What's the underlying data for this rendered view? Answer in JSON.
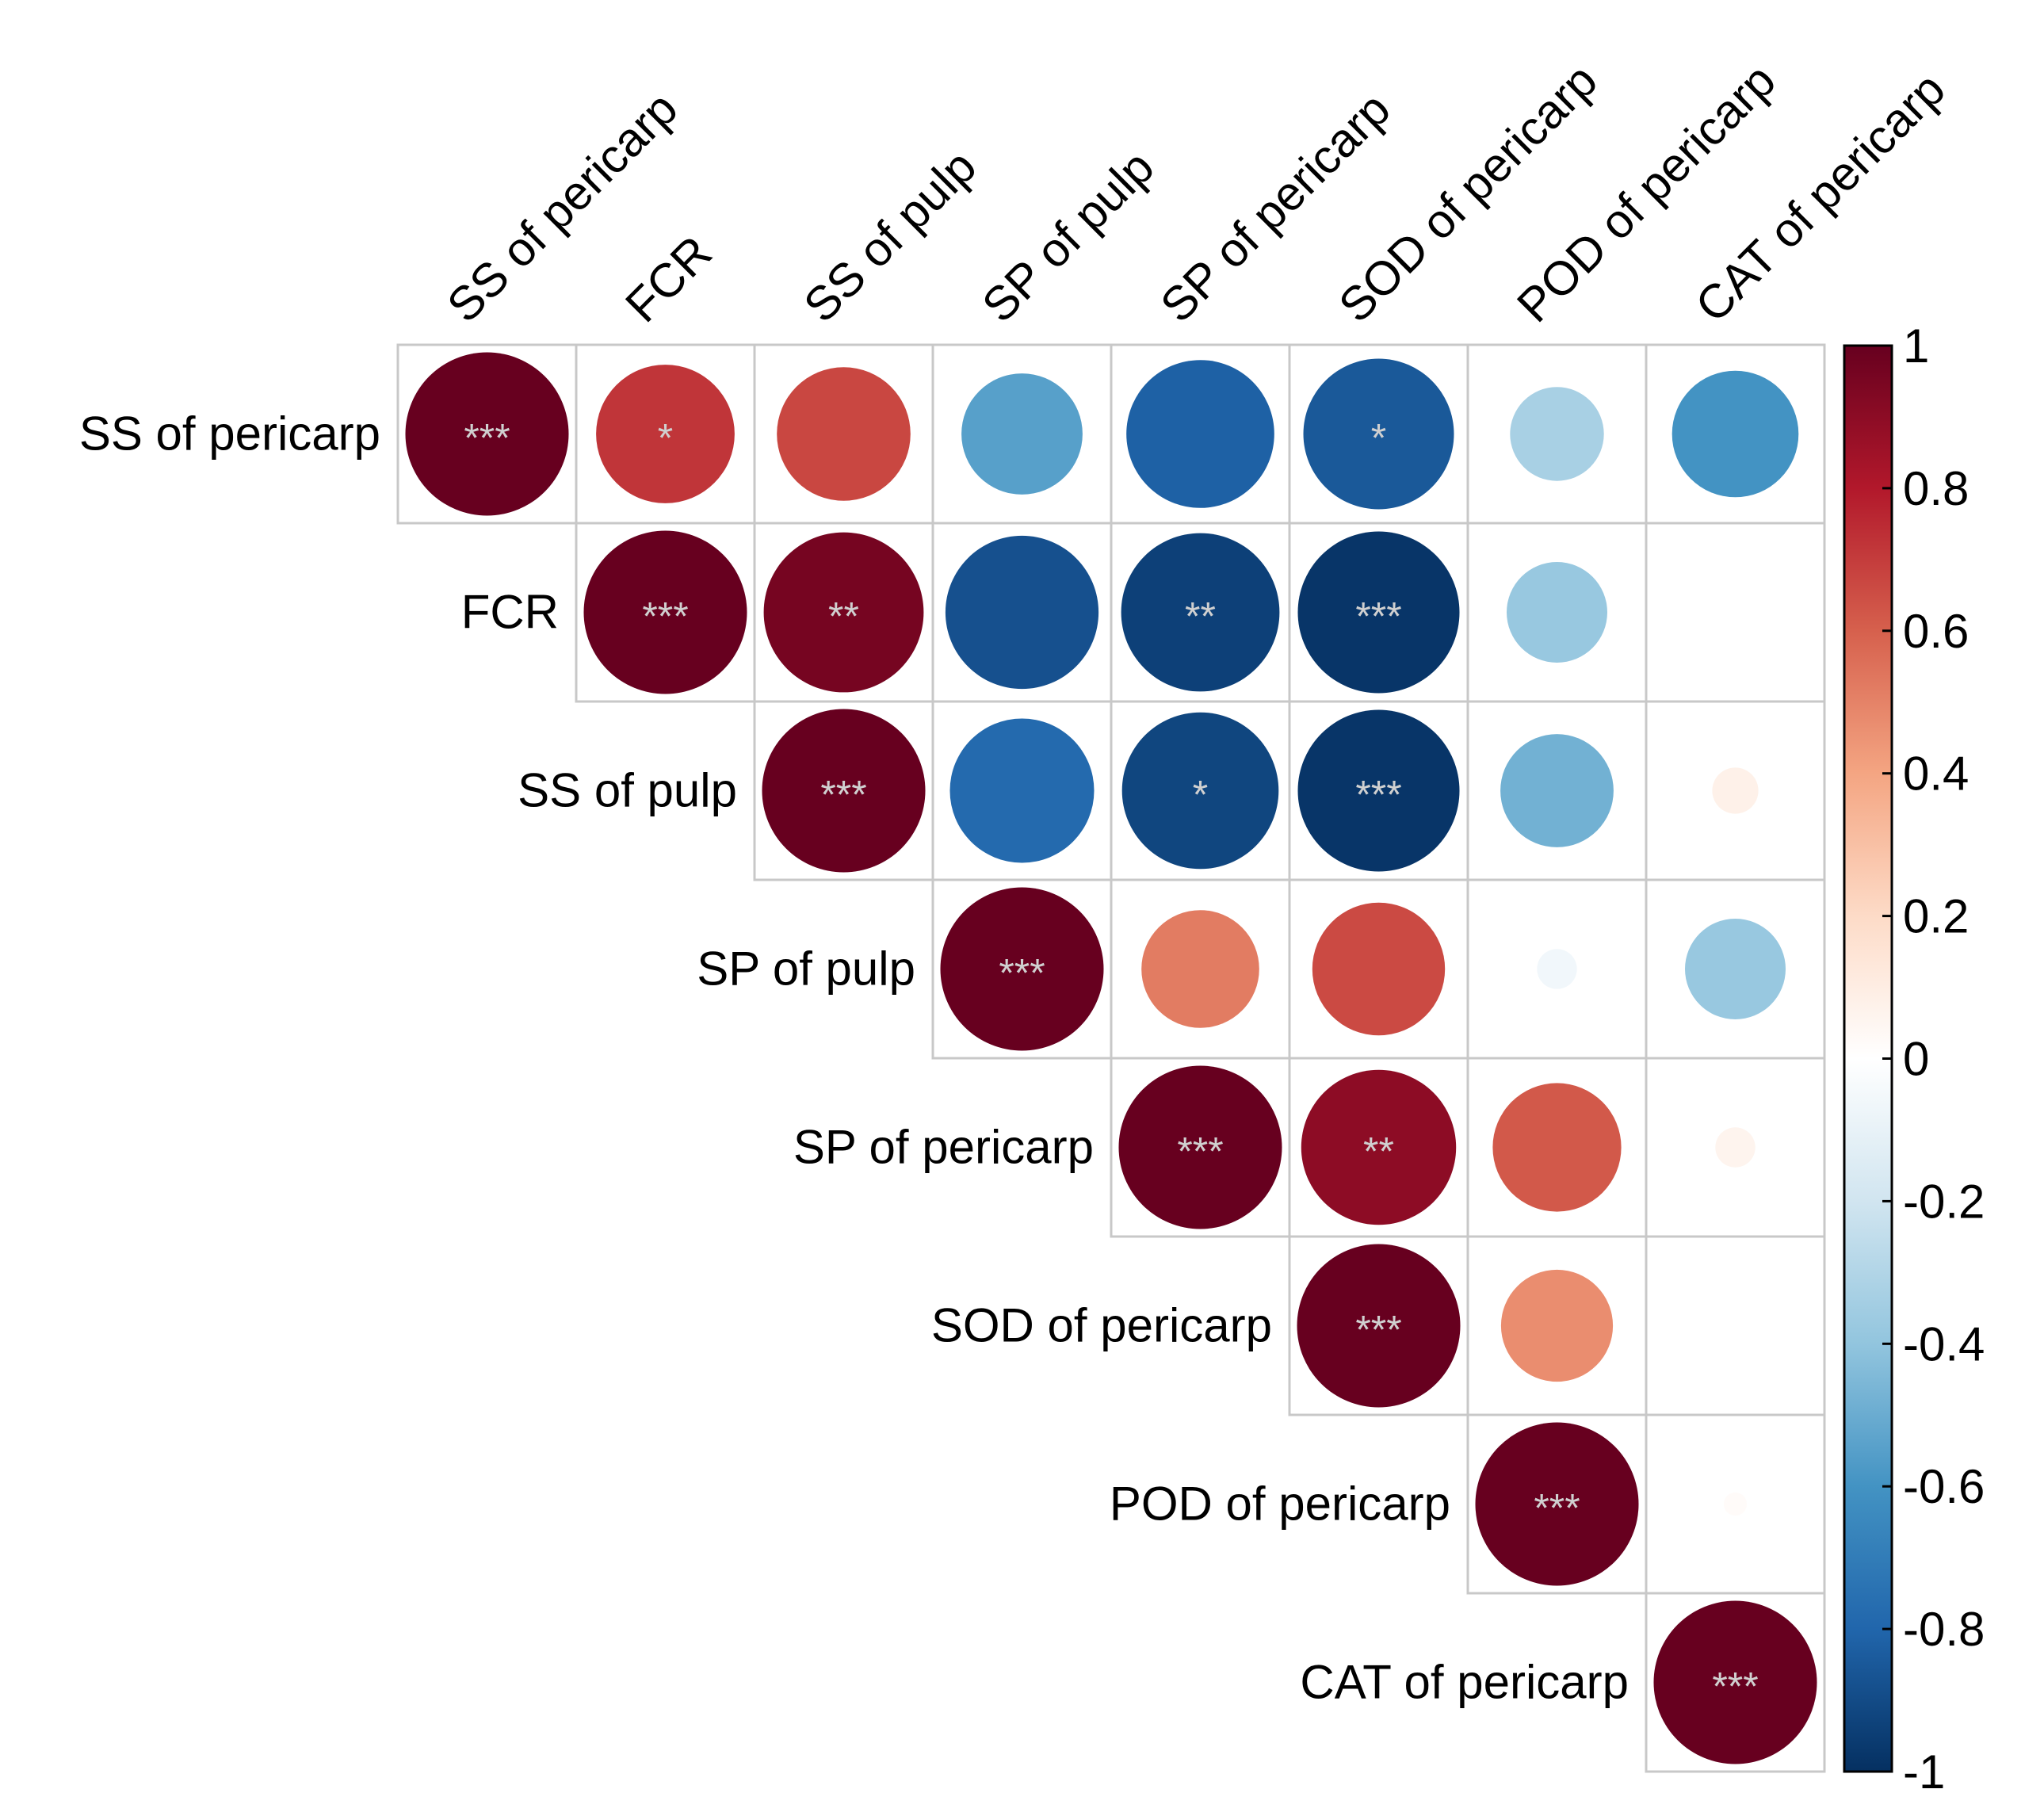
{
  "chart_data": {
    "type": "heatmap",
    "style": "upper-triangle correlation circle plot",
    "variables": [
      "SS of pericarp",
      "FCR",
      "SS of pulp",
      "SP of pulp",
      "SP of pericarp",
      "SOD of pericarp",
      "POD of pericarp",
      "CAT of pericarp"
    ],
    "matrix": [
      [
        1.0,
        0.72,
        0.67,
        -0.55,
        -0.82,
        -0.85,
        -0.33,
        -0.6
      ],
      [
        null,
        1.0,
        0.96,
        -0.88,
        -0.94,
        -0.98,
        -0.38,
        0.0
      ],
      [
        null,
        null,
        1.0,
        -0.78,
        -0.92,
        -0.98,
        -0.48,
        0.08
      ],
      [
        null,
        null,
        null,
        1.0,
        0.52,
        0.66,
        -0.06,
        -0.38
      ],
      [
        null,
        null,
        null,
        null,
        1.0,
        0.9,
        0.62,
        0.06
      ],
      [
        null,
        null,
        null,
        null,
        null,
        1.0,
        0.47,
        0.0
      ],
      [
        null,
        null,
        null,
        null,
        null,
        null,
        1.0,
        0.02
      ],
      [
        null,
        null,
        null,
        null,
        null,
        null,
        null,
        1.0
      ]
    ],
    "significance": [
      [
        "***",
        "*",
        "",
        "",
        "",
        "*",
        "",
        ""
      ],
      [
        null,
        "***",
        "**",
        "",
        "**",
        "***",
        "",
        ""
      ],
      [
        null,
        null,
        "***",
        "",
        "*",
        "***",
        "",
        ""
      ],
      [
        null,
        null,
        null,
        "***",
        "",
        "",
        "",
        ""
      ],
      [
        null,
        null,
        null,
        null,
        "***",
        "**",
        "",
        ""
      ],
      [
        null,
        null,
        null,
        null,
        null,
        "***",
        "",
        ""
      ],
      [
        null,
        null,
        null,
        null,
        null,
        null,
        "***",
        ""
      ],
      [
        null,
        null,
        null,
        null,
        null,
        null,
        null,
        "***"
      ]
    ],
    "colorbar": {
      "ticks": [
        "1",
        "0.8",
        "0.6",
        "0.4",
        "0.2",
        "0",
        "-0.2",
        "-0.4",
        "-0.6",
        "-0.8",
        "-1"
      ],
      "range": [
        -1,
        1
      ],
      "colors": [
        "#67001f",
        "#b2182b",
        "#d6604d",
        "#f4a582",
        "#fddbc7",
        "#ffffff",
        "#d1e5f0",
        "#92c5de",
        "#4393c3",
        "#2166ac",
        "#053061"
      ]
    },
    "colors": {
      "grid": "#c8c8c8",
      "star": "#d0d0d0",
      "text": "#000000"
    }
  }
}
